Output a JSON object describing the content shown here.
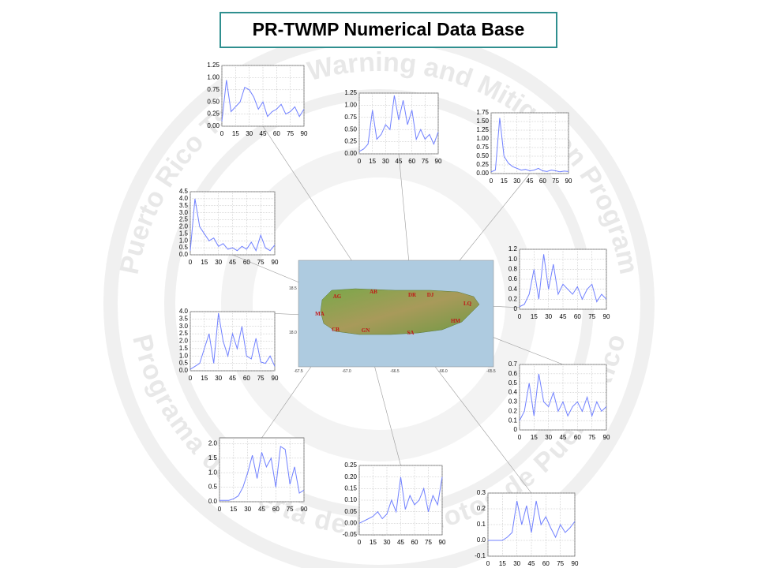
{
  "title": "PR-TWMP Numerical Data Base",
  "watermark": {
    "upper": "Puerto Rico Tsunami Warning and Mitigation Program",
    "lower": "Programa de Alerta de Maremotos de Puerto Rico"
  },
  "map": {
    "labels": [
      "AG",
      "AB",
      "DR",
      "DJ",
      "LQ",
      "MA",
      "HM",
      "CB",
      "GN",
      "SA"
    ],
    "yticks": [
      "18.5",
      "18.0"
    ],
    "xticks": [
      "-67.5",
      "-67.0",
      "-66.5",
      "-66.0",
      "-65.5"
    ]
  },
  "chart_data": [
    {
      "type": "line",
      "x": [
        0,
        5,
        10,
        15,
        20,
        25,
        30,
        35,
        40,
        45,
        50,
        55,
        60,
        65,
        70,
        75,
        80,
        85,
        90
      ],
      "xlim": [
        0,
        90
      ],
      "xticks": [
        0,
        15,
        30,
        45,
        60,
        75,
        90
      ],
      "ylim": [
        0,
        1.25
      ],
      "yticks": [
        {
          "value": 0,
          "label": "0.00"
        },
        0.25,
        {
          "value": 0.5,
          "label": "0.50"
        },
        0.75,
        {
          "value": 1,
          "label": "1.00"
        },
        1.25
      ],
      "grid": true,
      "series": [
        {
          "color": "#7080ff",
          "values": [
            0.1,
            0.95,
            0.3,
            0.4,
            0.5,
            0.8,
            0.75,
            0.6,
            0.35,
            0.5,
            0.2,
            0.3,
            0.35,
            0.45,
            0.25,
            0.3,
            0.4,
            0.2,
            0.35
          ]
        }
      ]
    },
    {
      "type": "line",
      "x": [
        0,
        5,
        10,
        15,
        20,
        25,
        30,
        35,
        40,
        45,
        50,
        55,
        60,
        65,
        70,
        75,
        80,
        85,
        90
      ],
      "xlim": [
        0,
        90
      ],
      "xticks": [
        0,
        15,
        30,
        45,
        60,
        75,
        90
      ],
      "ylim": [
        0,
        1.25
      ],
      "yticks": [
        {
          "value": 0,
          "label": "0.00"
        },
        0.25,
        {
          "value": 0.5,
          "label": "0.50"
        },
        0.75,
        {
          "value": 1,
          "label": "1.00"
        },
        1.25
      ],
      "grid": true,
      "series": [
        {
          "color": "#7080ff",
          "values": [
            0.05,
            0.1,
            0.2,
            0.9,
            0.3,
            0.4,
            0.6,
            0.5,
            1.2,
            0.7,
            1.1,
            0.6,
            0.9,
            0.3,
            0.5,
            0.3,
            0.4,
            0.2,
            0.45
          ]
        }
      ]
    },
    {
      "type": "line",
      "x": [
        0,
        5,
        10,
        15,
        20,
        25,
        30,
        35,
        40,
        45,
        50,
        55,
        60,
        65,
        70,
        75,
        80,
        85,
        90
      ],
      "xlim": [
        0,
        90
      ],
      "xticks": [
        0,
        15,
        30,
        45,
        60,
        75,
        90
      ],
      "ylim": [
        0,
        1.75
      ],
      "yticks": [
        {
          "value": 0,
          "label": "0.00"
        },
        0.25,
        {
          "value": 0.5,
          "label": "0.50"
        },
        0.75,
        {
          "value": 1,
          "label": "1.00"
        },
        1.25,
        {
          "value": 1.5,
          "label": "1.50"
        },
        1.75
      ],
      "grid": true,
      "series": [
        {
          "color": "#7080ff",
          "values": [
            0.05,
            0.1,
            1.6,
            0.5,
            0.3,
            0.2,
            0.15,
            0.1,
            0.12,
            0.08,
            0.1,
            0.15,
            0.08,
            0.06,
            0.1,
            0.08,
            0.05,
            0.07,
            0.06
          ]
        }
      ]
    },
    {
      "type": "line",
      "x": [
        0,
        5,
        10,
        15,
        20,
        25,
        30,
        35,
        40,
        45,
        50,
        55,
        60,
        65,
        70,
        75,
        80,
        85,
        90
      ],
      "xlim": [
        0,
        90
      ],
      "xticks": [
        0,
        15,
        30,
        45,
        60,
        75,
        90
      ],
      "ylim": [
        0,
        4.5
      ],
      "yticks": [
        {
          "value": 0,
          "label": "0.0"
        },
        0.5,
        {
          "value": 1,
          "label": "1.0"
        },
        1.5,
        {
          "value": 2,
          "label": "2.0"
        },
        2.5,
        {
          "value": 3,
          "label": "3.0"
        },
        3.5,
        {
          "value": 4,
          "label": "4.0"
        },
        4.5
      ],
      "grid": true,
      "series": [
        {
          "color": "#7080ff",
          "values": [
            0.3,
            4.0,
            2.0,
            1.5,
            1.0,
            1.2,
            0.6,
            0.8,
            0.4,
            0.5,
            0.3,
            0.6,
            0.4,
            0.9,
            0.3,
            1.4,
            0.5,
            0.3,
            0.7
          ]
        }
      ]
    },
    {
      "type": "line",
      "x": [
        0,
        5,
        10,
        15,
        20,
        25,
        30,
        35,
        40,
        45,
        50,
        55,
        60,
        65,
        70,
        75,
        80,
        85,
        90
      ],
      "xlim": [
        0,
        90
      ],
      "xticks": [
        0,
        15,
        30,
        45,
        60,
        75,
        90
      ],
      "ylim": [
        0,
        1.2
      ],
      "yticks": [
        0,
        0.2,
        0.4,
        0.6,
        0.8,
        {
          "value": 1,
          "label": "1.0"
        },
        1.2
      ],
      "grid": true,
      "series": [
        {
          "color": "#7080ff",
          "values": [
            0.05,
            0.1,
            0.3,
            0.8,
            0.2,
            1.1,
            0.4,
            0.9,
            0.3,
            0.5,
            0.4,
            0.3,
            0.45,
            0.2,
            0.4,
            0.5,
            0.15,
            0.3,
            0.2
          ]
        }
      ]
    },
    {
      "type": "line",
      "x": [
        0,
        5,
        10,
        15,
        20,
        25,
        30,
        35,
        40,
        45,
        50,
        55,
        60,
        65,
        70,
        75,
        80,
        85,
        90
      ],
      "xlim": [
        0,
        90
      ],
      "xticks": [
        0,
        15,
        30,
        45,
        60,
        75,
        90
      ],
      "ylim": [
        0,
        4
      ],
      "yticks": [
        {
          "value": 0,
          "label": "0.0"
        },
        0.5,
        {
          "value": 1,
          "label": "1.0"
        },
        1.5,
        {
          "value": 2,
          "label": "2.0"
        },
        2.5,
        {
          "value": 3,
          "label": "3.0"
        },
        3.5,
        {
          "value": 4,
          "label": "4.0"
        }
      ],
      "grid": true,
      "series": [
        {
          "color": "#7080ff",
          "values": [
            0.1,
            0.3,
            0.5,
            1.5,
            2.5,
            0.5,
            3.9,
            2.0,
            1.0,
            2.5,
            1.5,
            3.0,
            1.0,
            0.8,
            2.2,
            0.6,
            0.5,
            1.0,
            0.3
          ]
        }
      ]
    },
    {
      "type": "line",
      "x": [
        0,
        5,
        10,
        15,
        20,
        25,
        30,
        35,
        40,
        45,
        50,
        55,
        60,
        65,
        70,
        75,
        80,
        85,
        90
      ],
      "xlim": [
        0,
        90
      ],
      "xticks": [
        0,
        15,
        30,
        45,
        60,
        75,
        90
      ],
      "ylim": [
        0,
        0.7
      ],
      "yticks": [
        0,
        0.1,
        0.2,
        0.3,
        0.4,
        0.5,
        0.6,
        0.7
      ],
      "grid": true,
      "series": [
        {
          "color": "#7080ff",
          "values": [
            0.1,
            0.2,
            0.5,
            0.15,
            0.6,
            0.3,
            0.25,
            0.4,
            0.2,
            0.3,
            0.15,
            0.25,
            0.3,
            0.2,
            0.35,
            0.15,
            0.3,
            0.2,
            0.25
          ]
        }
      ]
    },
    {
      "type": "line",
      "x": [
        0,
        5,
        10,
        15,
        20,
        25,
        30,
        35,
        40,
        45,
        50,
        55,
        60,
        65,
        70,
        75,
        80,
        85,
        90
      ],
      "xlim": [
        0,
        90
      ],
      "xticks": [
        0,
        15,
        30,
        45,
        60,
        75,
        90
      ],
      "ylim": [
        0,
        2.2
      ],
      "yticks": [
        {
          "value": 0,
          "label": "0.0"
        },
        0.5,
        {
          "value": 1,
          "label": "1.0"
        },
        1.5,
        {
          "value": 2,
          "label": "2.0"
        }
      ],
      "grid": true,
      "series": [
        {
          "color": "#7080ff",
          "values": [
            0.05,
            0.05,
            0.05,
            0.1,
            0.2,
            0.5,
            1.0,
            1.6,
            0.8,
            1.7,
            1.2,
            1.5,
            0.5,
            1.9,
            1.8,
            0.6,
            1.2,
            0.3,
            0.4
          ]
        }
      ]
    },
    {
      "type": "line",
      "x": [
        0,
        5,
        10,
        15,
        20,
        25,
        30,
        35,
        40,
        45,
        50,
        55,
        60,
        65,
        70,
        75,
        80,
        85,
        90
      ],
      "xlim": [
        0,
        90
      ],
      "xticks": [
        0,
        15,
        30,
        45,
        60,
        75,
        90
      ],
      "ylim": [
        -0.05,
        0.25
      ],
      "yticks": [
        -0.05,
        {
          "value": 0,
          "label": "0.00"
        },
        0.05,
        {
          "value": 0.1,
          "label": "0.10"
        },
        0.15,
        {
          "value": 0.2,
          "label": "0.20"
        },
        0.25
      ],
      "grid": true,
      "series": [
        {
          "color": "#7080ff",
          "values": [
            0,
            0.01,
            0.02,
            0.03,
            0.05,
            0.02,
            0.04,
            0.1,
            0.05,
            0.2,
            0.06,
            0.12,
            0.08,
            0.1,
            0.15,
            0.05,
            0.12,
            0.08,
            0.2
          ]
        }
      ]
    },
    {
      "type": "line",
      "x": [
        0,
        5,
        10,
        15,
        20,
        25,
        30,
        35,
        40,
        45,
        50,
        55,
        60,
        65,
        70,
        75,
        80,
        85,
        90
      ],
      "xlim": [
        0,
        90
      ],
      "xticks": [
        0,
        15,
        30,
        45,
        60,
        75,
        90
      ],
      "ylim": [
        -0.1,
        0.3
      ],
      "yticks": [
        -0.1,
        {
          "value": 0,
          "label": "0.0"
        },
        0.1,
        0.2,
        0.3
      ],
      "grid": true,
      "series": [
        {
          "color": "#7080ff",
          "values": [
            0,
            0,
            0,
            0,
            0.02,
            0.05,
            0.25,
            0.1,
            0.22,
            0.05,
            0.25,
            0.1,
            0.15,
            0.08,
            0.02,
            0.1,
            0.05,
            0.08,
            0.12
          ]
        }
      ]
    }
  ]
}
